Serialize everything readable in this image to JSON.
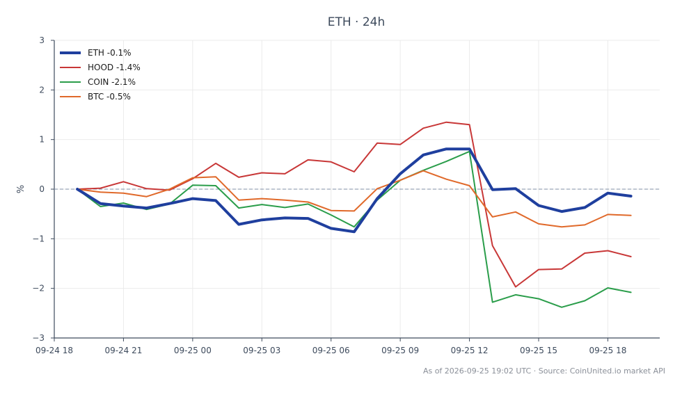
{
  "chart_data": {
    "type": "line",
    "title": "ETH · 24h",
    "ylabel": "%",
    "xlabel": "",
    "ylim": [
      -3,
      3
    ],
    "xlim": [
      "2026-09-24 18:00",
      "2026-09-25 20:15"
    ],
    "x_ticks": [
      "09-24 18",
      "09-24 21",
      "09-25 00",
      "09-25 03",
      "09-25 06",
      "09-25 09",
      "09-25 12",
      "09-25 15",
      "09-25 18"
    ],
    "y_ticks": [
      "−3",
      "−2",
      "−1",
      "0",
      "1",
      "2",
      "3"
    ],
    "y_tick_values": [
      -3,
      -2,
      -1,
      0,
      1,
      2,
      3
    ],
    "grid": true,
    "zero_line": true,
    "legend_position": "top-left",
    "x": [
      "2026-09-24 19:00",
      "2026-09-24 20:00",
      "2026-09-24 21:00",
      "2026-09-24 22:00",
      "2026-09-24 23:00",
      "2026-09-25 00:00",
      "2026-09-25 01:00",
      "2026-09-25 02:00",
      "2026-09-25 03:00",
      "2026-09-25 04:00",
      "2026-09-25 05:00",
      "2026-09-25 06:00",
      "2026-09-25 07:00",
      "2026-09-25 08:00",
      "2026-09-25 09:00",
      "2026-09-25 10:00",
      "2026-09-25 11:00",
      "2026-09-25 12:00",
      "2026-09-25 13:00",
      "2026-09-25 14:00",
      "2026-09-25 15:00",
      "2026-09-25 16:00",
      "2026-09-25 17:00",
      "2026-09-25 18:00",
      "2026-09-25 19:00"
    ],
    "series": [
      {
        "name": "ETH -0.1%",
        "color": "#1f3f9e",
        "width": 4,
        "values": [
          0.0,
          -0.29,
          -0.34,
          -0.38,
          -0.29,
          -0.19,
          -0.23,
          -0.71,
          -0.62,
          -0.58,
          -0.59,
          -0.79,
          -0.86,
          -0.19,
          0.31,
          0.69,
          0.81,
          0.81,
          -0.01,
          0.01,
          -0.33,
          -0.45,
          -0.37,
          -0.08,
          -0.14
        ]
      },
      {
        "name": "HOOD -1.4%",
        "color": "#c83737",
        "width": 2,
        "values": [
          0.0,
          0.02,
          0.15,
          0.01,
          -0.02,
          0.21,
          0.52,
          0.24,
          0.33,
          0.31,
          0.59,
          0.55,
          0.35,
          0.93,
          0.9,
          1.23,
          1.35,
          1.3,
          -1.14,
          -1.97,
          -1.62,
          -1.61,
          -1.29,
          -1.24,
          -1.36
        ]
      },
      {
        "name": "COIN -2.1%",
        "color": "#2a9d4a",
        "width": 2,
        "values": [
          0.0,
          -0.35,
          -0.28,
          -0.41,
          -0.3,
          0.08,
          0.07,
          -0.38,
          -0.31,
          -0.37,
          -0.3,
          -0.52,
          -0.76,
          -0.22,
          0.18,
          0.38,
          0.56,
          0.76,
          -2.28,
          -2.13,
          -2.21,
          -2.38,
          -2.25,
          -1.99,
          -2.08
        ]
      },
      {
        "name": "BTC -0.5%",
        "color": "#e0692a",
        "width": 2,
        "values": [
          0.0,
          -0.06,
          -0.08,
          -0.15,
          -0.0,
          0.23,
          0.25,
          -0.22,
          -0.19,
          -0.22,
          -0.26,
          -0.43,
          -0.44,
          0.01,
          0.18,
          0.37,
          0.2,
          0.07,
          -0.56,
          -0.46,
          -0.7,
          -0.76,
          -0.72,
          -0.51,
          -0.53
        ]
      }
    ]
  },
  "footer": {
    "note": "As of 2026-09-25 19:02 UTC · Source: CoinUnited.io market API"
  }
}
